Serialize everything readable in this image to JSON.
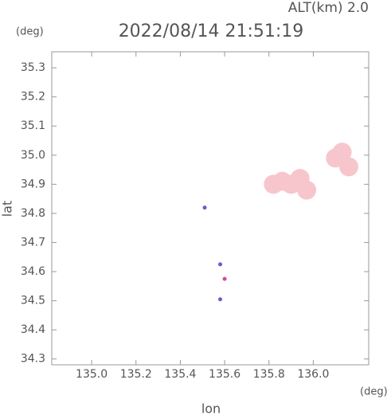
{
  "alt_label": "ALT(km) 2.0",
  "chart_data": {
    "type": "scatter",
    "title": "2022/08/14 21:51:19",
    "x_label": "lon",
    "y_label": "lat",
    "x_unit": "(deg)",
    "y_unit": "(deg)",
    "xlim": [
      134.82,
      136.25
    ],
    "ylim": [
      34.28,
      35.355
    ],
    "xticks": [
      {
        "value": 135.0,
        "label": "135.0"
      },
      135.2,
      135.4,
      135.6,
      135.8,
      {
        "value": 136.0,
        "label": "136.0"
      }
    ],
    "yticks": [
      34.3,
      34.4,
      34.5,
      34.6,
      34.7,
      34.8,
      {
        "value": 34.9,
        "label": "34.9"
      },
      {
        "value": 35.0,
        "label": "35.0"
      },
      35.1,
      35.2,
      35.3
    ],
    "series": [
      {
        "color": "#f7c6cc",
        "x": [
          135.82,
          135.86,
          135.9,
          135.94,
          135.97,
          136.1,
          136.13,
          136.16
        ],
        "values": [
          34.9,
          34.91,
          34.9,
          34.92,
          34.88,
          34.99,
          35.01,
          34.96
        ]
      },
      {
        "color": "#d6489a",
        "x": [
          135.6
        ],
        "values": [
          34.575
        ]
      },
      {
        "color": "#6a5acd",
        "x": [
          135.51,
          135.58,
          135.58
        ],
        "values": [
          34.82,
          34.625,
          34.505
        ]
      }
    ]
  }
}
